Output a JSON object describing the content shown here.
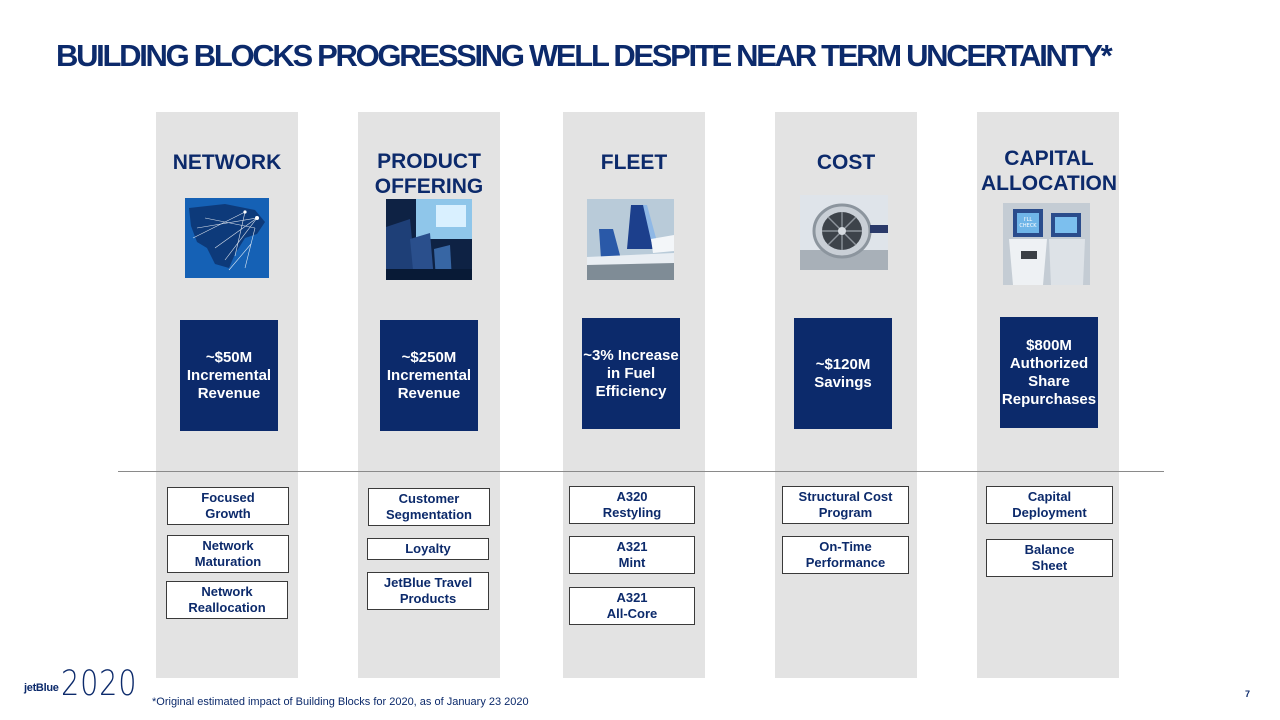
{
  "slide": {
    "title": "BUILDING BLOCKS PROGRESSING WELL DESPITE NEAR TERM UNCERTAINTY*",
    "footnote": "*Original estimated impact of Building Blocks for 2020, as of January 23 2020",
    "page_number": "7",
    "logo": {
      "brand": "jetBlue",
      "year": "2020",
      "icon": "jetblue-2020-logo"
    }
  },
  "columns": [
    {
      "header": "NETWORK",
      "image_icon": "route-map-photo",
      "metric": "~$50M\nIncremental\nRevenue",
      "tags": [
        "Focused\nGrowth",
        "Network\nMaturation",
        "Network\nReallocation"
      ]
    },
    {
      "header": "PRODUCT\nOFFERING",
      "image_icon": "cabin-seats-photo",
      "metric": "~$250M\nIncremental\nRevenue",
      "tags": [
        "Customer\nSegmentation",
        "Loyalty",
        "JetBlue Travel\nProducts"
      ]
    },
    {
      "header": "FLEET",
      "image_icon": "aircraft-tails-photo",
      "metric": "~3% Increase\nin Fuel\nEfficiency",
      "tags": [
        "A320\nRestyling",
        "A321\nMint",
        "A321\nAll-Core"
      ]
    },
    {
      "header": "COST",
      "image_icon": "jet-engine-photo",
      "metric": "~$120M\nSavings",
      "tags": [
        "Structural Cost\nProgram",
        "On-Time\nPerformance"
      ]
    },
    {
      "header": "CAPITAL\nALLOCATION",
      "image_icon": "self-service-kiosk-photo",
      "metric": "$800M\nAuthorized\nShare\nRepurchases",
      "tags": [
        "Capital\nDeployment",
        "Balance\nSheet"
      ]
    }
  ],
  "colors": {
    "navy": "#0c2a6b",
    "column_bg": "#e3e3e3"
  }
}
